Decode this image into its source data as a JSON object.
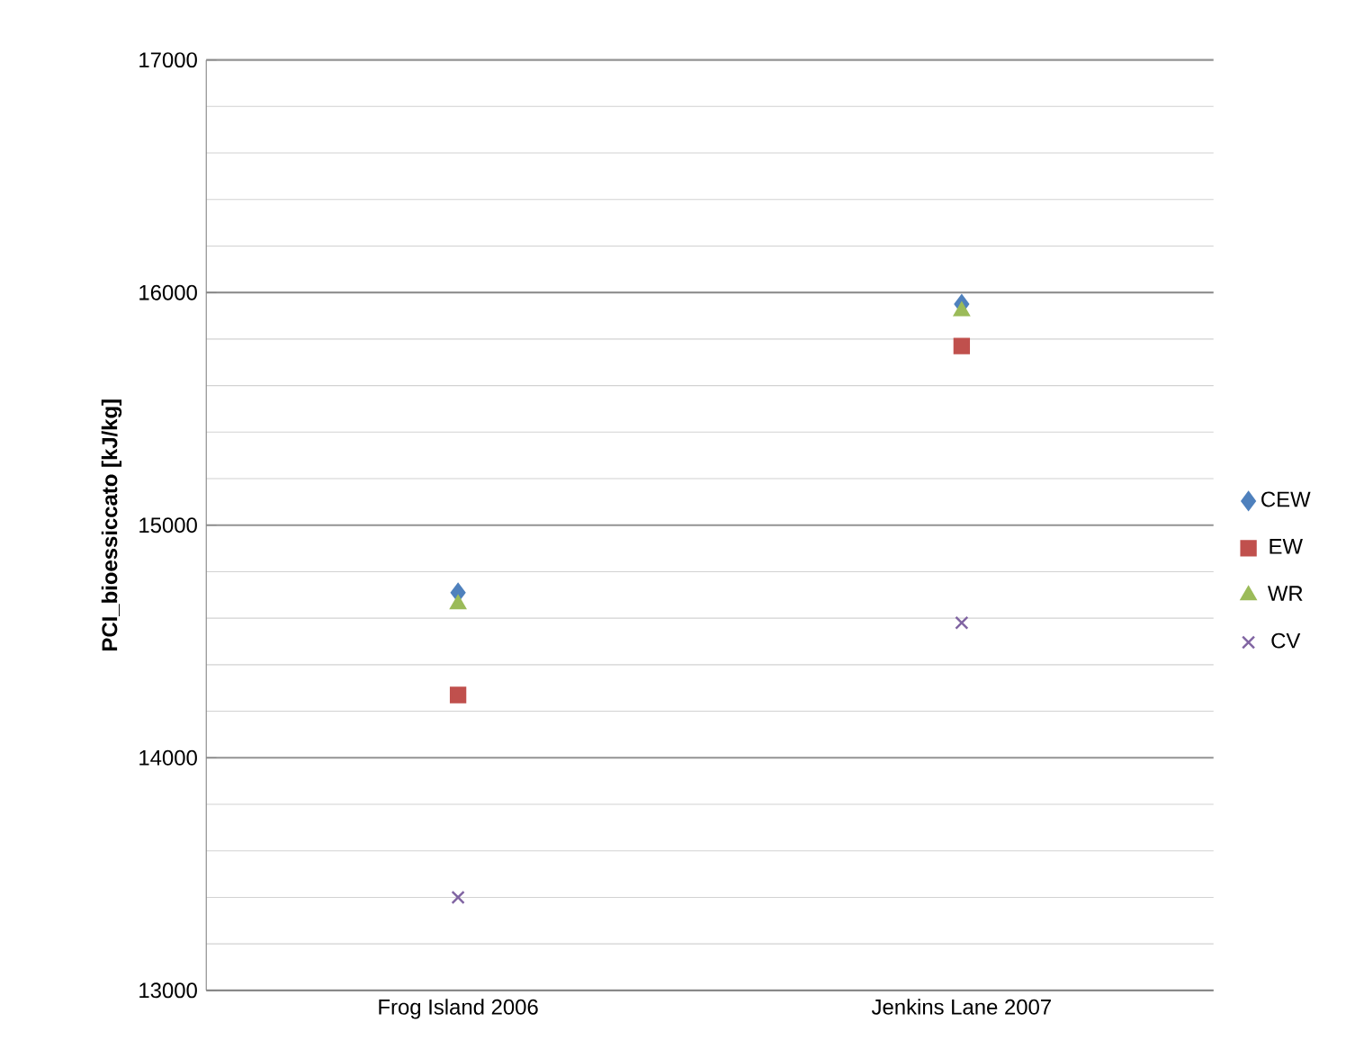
{
  "chart_data": {
    "type": "scatter",
    "ylabel": "PCI_bioessiccato [kJ/kg]",
    "categories": [
      "Frog Island 2006",
      "Jenkins Lane 2007"
    ],
    "ylim": [
      13000,
      17000
    ],
    "yticks": [
      13000,
      14000,
      15000,
      16000,
      17000
    ],
    "grid": "y",
    "legend": "right",
    "series": [
      {
        "name": "CEW",
        "color": "#4f81bd",
        "marker": "diamond",
        "values": [
          14710,
          15950
        ]
      },
      {
        "name": "EW",
        "color": "#c0504d",
        "marker": "square",
        "values": [
          14270,
          15770
        ]
      },
      {
        "name": "WR",
        "color": "#9bbb59",
        "marker": "triangle",
        "values": [
          14660,
          15920
        ]
      },
      {
        "name": "CV",
        "color": "#8064a2",
        "marker": "cross",
        "values": [
          13400,
          14580
        ]
      }
    ]
  }
}
